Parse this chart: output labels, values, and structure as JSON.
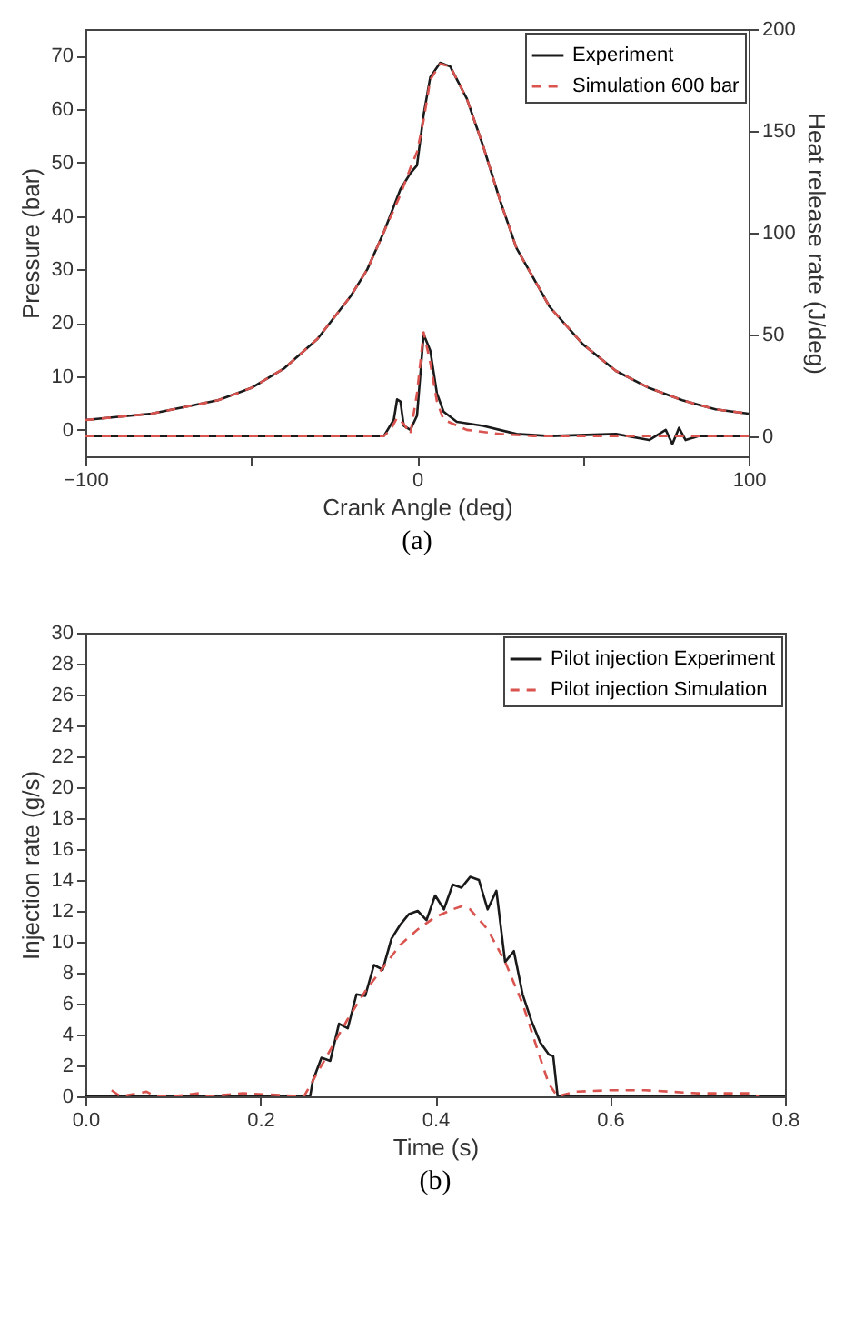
{
  "chart_data": [
    {
      "type": "line",
      "xlabel": "Crank Angle (deg)",
      "ylabel": "Pressure (bar)",
      "y2label": "Heat release rate (J/deg)",
      "annotations": [
        "(a)"
      ],
      "legend": "top right",
      "xlim": [
        -100,
        100
      ],
      "xticks": [
        -100,
        {
          "value": -50,
          "label": null
        },
        0,
        {
          "value": 50,
          "label": null
        },
        100
      ],
      "ylim": [
        -5,
        75
      ],
      "yticks": [
        0,
        10,
        20,
        30,
        40,
        50,
        60,
        70
      ],
      "y2lim": [
        -10,
        200
      ],
      "y2ticks": [
        0,
        50,
        100,
        150,
        200
      ],
      "series": [
        {
          "name": "Experiment",
          "color": "#1a1a1a",
          "line_style": "solid",
          "x": [
            -100,
            -80,
            -60,
            -50,
            -40,
            -30,
            -20,
            -15,
            -10,
            -5,
            -2,
            0,
            2,
            4,
            7,
            10,
            15,
            20,
            25,
            30,
            40,
            50,
            60,
            70,
            80,
            90,
            100
          ],
          "values": [
            1.8,
            3,
            5.5,
            7.8,
            11.5,
            17,
            25,
            30,
            37,
            45,
            48,
            49.5,
            59,
            66,
            68.7,
            68,
            62,
            53,
            43,
            34,
            23,
            16,
            11,
            7.8,
            5.5,
            3.8,
            3
          ]
        },
        {
          "name": "Simulation 600 bar",
          "color": "#d9534f",
          "line_style": "dashed",
          "x": [
            -100,
            -80,
            -60,
            -50,
            -40,
            -30,
            -20,
            -15,
            -10,
            -5,
            -2,
            0,
            2,
            4,
            7,
            10,
            15,
            20,
            25,
            30,
            40,
            50,
            60,
            70,
            80,
            90,
            100
          ],
          "values": [
            1.8,
            3,
            5.5,
            7.8,
            11.5,
            17,
            25,
            30,
            37,
            44,
            49,
            52,
            58,
            65.5,
            68.5,
            68,
            62,
            53,
            43,
            34,
            23,
            16,
            11,
            7.8,
            5.5,
            3.8,
            3
          ]
        },
        {
          "color": "#1a1a1a",
          "line_style": "solid",
          "axis": "y2",
          "x": [
            -100,
            -10,
            -7,
            -6,
            -5,
            -4,
            -2,
            0,
            2,
            4,
            6,
            8,
            12,
            20,
            30,
            40,
            60,
            70,
            75,
            77,
            79,
            81,
            85,
            100
          ],
          "values": [
            0,
            0,
            8,
            18,
            17,
            5,
            3,
            10,
            50,
            42,
            21,
            12,
            7,
            5,
            1,
            0,
            1,
            -2,
            3,
            -4,
            4,
            -2,
            0,
            0
          ]
        },
        {
          "color": "#d9534f",
          "line_style": "dashed",
          "axis": "y2",
          "x": [
            -100,
            -10,
            -8,
            -6,
            -4,
            -2,
            0,
            2,
            4,
            6,
            8,
            15,
            25,
            35,
            100
          ],
          "values": [
            0,
            0,
            3,
            9,
            6,
            1,
            21,
            51,
            36,
            17,
            8,
            3,
            1,
            0,
            0
          ]
        }
      ]
    },
    {
      "type": "line",
      "xlabel": "Time (s)",
      "ylabel": "Injection rate (g/s)",
      "annotations": [
        "(b)"
      ],
      "legend": "top right",
      "xlim": [
        0,
        0.8
      ],
      "xticks": [
        {
          "value": 0,
          "label": "0.0"
        },
        0.2,
        0.4,
        0.6,
        0.8
      ],
      "ylim": [
        0,
        30
      ],
      "yticks": [
        0,
        2,
        4,
        6,
        8,
        10,
        12,
        14,
        16,
        18,
        20,
        22,
        24,
        26,
        28,
        30
      ],
      "series": [
        {
          "name": "Pilot injection Experiment",
          "color": "#1a1a1a",
          "line_style": "solid",
          "x": [
            0,
            0.257,
            0.26,
            0.27,
            0.28,
            0.29,
            0.3,
            0.31,
            0.32,
            0.33,
            0.34,
            0.35,
            0.36,
            0.37,
            0.38,
            0.39,
            0.4,
            0.41,
            0.42,
            0.43,
            0.44,
            0.45,
            0.46,
            0.47,
            0.48,
            0.49,
            0.5,
            0.51,
            0.52,
            0.53,
            0.535,
            0.54,
            0.8
          ],
          "values": [
            0,
            0,
            1,
            2.5,
            2.3,
            4.7,
            4.4,
            6.6,
            6.5,
            8.5,
            8.2,
            10.2,
            11.1,
            11.8,
            12,
            11.4,
            13,
            12.1,
            13.7,
            13.5,
            14.2,
            14,
            12.1,
            13.3,
            8.7,
            9.4,
            6.6,
            4.9,
            3.5,
            2.7,
            2.6,
            0,
            0
          ]
        },
        {
          "name": "Pilot injection Simulation",
          "color": "#d9534f",
          "line_style": "dashed",
          "x": [
            0.03,
            0.04,
            0.07,
            0.08,
            0.1,
            0.13,
            0.14,
            0.18,
            0.25,
            0.26,
            0.28,
            0.3,
            0.32,
            0.34,
            0.36,
            0.38,
            0.4,
            0.42,
            0.43,
            0.44,
            0.46,
            0.48,
            0.5,
            0.52,
            0.53,
            0.54,
            0.56,
            0.6,
            0.64,
            0.7,
            0.76,
            0.77
          ],
          "values": [
            0.4,
            0,
            0.3,
            0,
            0,
            0.2,
            0,
            0.2,
            0,
            1,
            3,
            5,
            6.8,
            8.3,
            9.8,
            10.8,
            11.6,
            12.1,
            12.3,
            12.1,
            10.8,
            8.7,
            6,
            2.5,
            0.8,
            0,
            0.3,
            0.4,
            0.4,
            0.2,
            0.2,
            0
          ]
        }
      ]
    }
  ]
}
